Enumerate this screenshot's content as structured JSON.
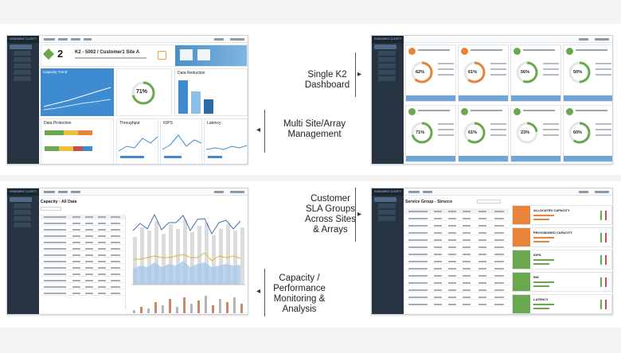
{
  "captions": {
    "single_k2": "Single K2\nDashboard",
    "multi_site": "Multi Site/Array\nManagement",
    "customer_sla": "Customer\nSLA Groups\nAcross Sites\n& Arrays",
    "capacity_perf": "Capacity /\nPerformance\nMonitoring &\nAnalysis"
  },
  "shot1": {
    "brand": "KAMINARIO CLARITY",
    "big_number": "2",
    "title": "K2 - 5002 / Customer1 Site A",
    "capacity_tile": "Capacity Trend",
    "efficiency": "71%",
    "data_reduction": "Data Reduction",
    "data_protection": "Data Protection",
    "throughput": "Throughput",
    "iops": "IOPS",
    "latency": "Latency"
  },
  "shot2": {
    "brand": "KAMINARIO CLARITY",
    "cards": [
      {
        "pct": "62%",
        "color": "#e8833a"
      },
      {
        "pct": "61%",
        "color": "#e8833a"
      },
      {
        "pct": "56%",
        "color": "#6aa84f"
      },
      {
        "pct": "50%",
        "color": "#6aa84f"
      },
      {
        "pct": "71%",
        "color": "#6aa84f"
      },
      {
        "pct": "61%",
        "color": "#6aa84f"
      },
      {
        "pct": "23%",
        "color": "#6aa84f"
      },
      {
        "pct": "60%",
        "color": "#6aa84f"
      }
    ]
  },
  "shot3": {
    "brand": "KAMINARIO CLARITY",
    "title": "Capacity - All Data"
  },
  "shot4": {
    "brand": "KAMINARIO CLARITY",
    "title": "Service Group - Sirocco",
    "kpis": [
      {
        "label": "ALLOCATED CAPACITY",
        "color": "#e8833a"
      },
      {
        "label": "PROVISIONED CAPACITY",
        "color": "#e8833a"
      },
      {
        "label": "IOPS",
        "color": "#6aa84f"
      },
      {
        "label": "BW",
        "color": "#6aa84f"
      },
      {
        "label": "LATENCY",
        "color": "#6aa84f"
      }
    ]
  }
}
